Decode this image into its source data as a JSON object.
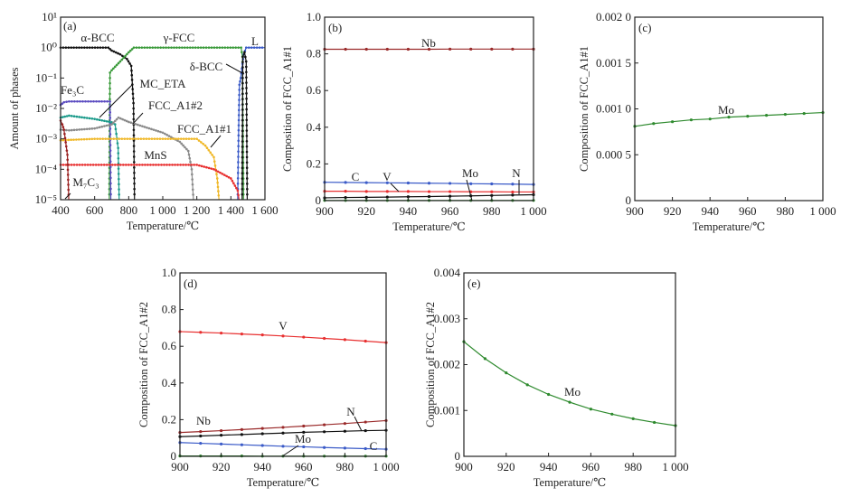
{
  "chart_data": [
    {
      "id": "a",
      "type": "line",
      "panel_label": "(a)",
      "xlabel": "Temperature/℃",
      "ylabel": "Amount of phases",
      "xlim": [
        400,
        1600
      ],
      "ylim": [
        1e-05,
        10
      ],
      "yscale": "log",
      "xticks": [
        400,
        600,
        800,
        1000,
        1200,
        1400,
        1600
      ],
      "xtick_labels": [
        "400",
        "600",
        "800",
        "1 000",
        "1 200",
        "1 400",
        "1 600"
      ],
      "yticks": [
        1e-05,
        0.0001,
        0.001,
        0.01,
        0.1,
        1,
        10
      ],
      "ytick_labels": [
        "10⁻⁵",
        "10⁻⁴",
        "10⁻³",
        "10⁻²",
        "10⁻¹",
        "10⁰",
        "10¹"
      ],
      "series": [
        {
          "name": "α-BCC",
          "color": "#111111",
          "points": [
            [
              400,
              1
            ],
            [
              680,
              1
            ],
            [
              700,
              0.8
            ],
            [
              750,
              0.6
            ],
            [
              790,
              0.42
            ],
            [
              815,
              0.25
            ],
            [
              828,
              0.015
            ],
            [
              834,
              1e-05
            ]
          ]
        },
        {
          "name": "γ-FCC",
          "color": "#3a9a3a",
          "points": [
            [
              686,
              1e-05
            ],
            [
              690,
              0.15
            ],
            [
              700,
              0.18
            ],
            [
              750,
              0.35
            ],
            [
              800,
              0.7
            ],
            [
              830,
              1
            ],
            [
              1460,
              1
            ],
            [
              1468,
              0.5
            ],
            [
              1474,
              1e-05
            ]
          ]
        },
        {
          "name": "L",
          "color": "#3b5bc8",
          "points": [
            [
              1440,
              1e-05
            ],
            [
              1445,
              0.0013
            ],
            [
              1450,
              0.06
            ],
            [
              1458,
              0.1
            ],
            [
              1475,
              0.6
            ],
            [
              1490,
              1
            ],
            [
              1600,
              1
            ]
          ]
        },
        {
          "name": "δ-BCC",
          "color": "#111111",
          "points": [
            [
              1466,
              1e-05
            ],
            [
              1470,
              0.5
            ],
            [
              1480,
              0.7
            ],
            [
              1490,
              0.35
            ],
            [
              1496,
              1e-05
            ]
          ]
        },
        {
          "name": "Fe₃C",
          "color": "#5a4ac0",
          "points": [
            [
              400,
              0.013
            ],
            [
              420,
              0.016
            ],
            [
              450,
              0.017
            ],
            [
              690,
              0.017
            ],
            [
              695,
              1e-05
            ]
          ]
        },
        {
          "name": "MC_ETA",
          "color": "#1a9a8a",
          "points": [
            [
              400,
              0.005
            ],
            [
              450,
              0.0058
            ],
            [
              600,
              0.0045
            ],
            [
              700,
              0.0035
            ],
            [
              720,
              0.003
            ],
            [
              738,
              0.0005
            ],
            [
              744,
              1e-05
            ]
          ]
        },
        {
          "name": "FCC_A1#2",
          "color": "#8a8a8a",
          "points": [
            [
              400,
              0.002
            ],
            [
              450,
              0.0019
            ],
            [
              600,
              0.0022
            ],
            [
              700,
              0.003
            ],
            [
              740,
              0.005
            ],
            [
              800,
              0.0036
            ],
            [
              1000,
              0.0016
            ],
            [
              1100,
              0.0008
            ],
            [
              1150,
              0.0004
            ],
            [
              1170,
              0.0001
            ],
            [
              1180,
              1e-05
            ]
          ]
        },
        {
          "name": "FCC_A1#1",
          "color": "#f0b828",
          "points": [
            [
              400,
              0.0009
            ],
            [
              600,
              0.001
            ],
            [
              1000,
              0.001
            ],
            [
              1200,
              0.001
            ],
            [
              1250,
              0.0006
            ],
            [
              1300,
              0.00025
            ],
            [
              1320,
              5e-05
            ],
            [
              1330,
              1e-05
            ]
          ]
        },
        {
          "name": "MnS",
          "color": "#e83030",
          "points": [
            [
              400,
              0.00014
            ],
            [
              1200,
              0.00014
            ],
            [
              1300,
              0.0001
            ],
            [
              1400,
              5e-05
            ],
            [
              1440,
              2e-05
            ],
            [
              1448,
              1e-05
            ]
          ]
        },
        {
          "name": "M₇C₃",
          "color": "#9a2020",
          "points": [
            [
              400,
              0.004
            ],
            [
              410,
              0.003
            ],
            [
              420,
              0.002
            ],
            [
              440,
              0.0003
            ],
            [
              448,
              1e-05
            ]
          ]
        }
      ]
    },
    {
      "id": "b",
      "type": "line",
      "panel_label": "(b)",
      "xlabel": "Temperature/℃",
      "ylabel": "Composition of  FCC_A1#1",
      "xlim": [
        900,
        1000
      ],
      "ylim": [
        0,
        1.0
      ],
      "xticks": [
        900,
        920,
        940,
        960,
        980,
        1000
      ],
      "xtick_labels": [
        "900",
        "920",
        "940",
        "960",
        "980",
        "1 000"
      ],
      "yticks": [
        0,
        0.2,
        0.4,
        0.6,
        0.8,
        1.0
      ],
      "ytick_labels": [
        "0",
        "0.2",
        "0.4",
        "0.6",
        "0.8",
        "1.0"
      ],
      "x": [
        900,
        910,
        920,
        930,
        940,
        950,
        960,
        970,
        980,
        990,
        1000
      ],
      "series": [
        {
          "name": "Nb",
          "color": "#9a2a2a",
          "values": [
            0.825,
            0.825,
            0.825,
            0.825,
            0.825,
            0.825,
            0.826,
            0.826,
            0.826,
            0.826,
            0.826
          ]
        },
        {
          "name": "C",
          "color": "#3b5bc8",
          "values": [
            0.1,
            0.099,
            0.098,
            0.097,
            0.096,
            0.095,
            0.094,
            0.092,
            0.091,
            0.09,
            0.088
          ]
        },
        {
          "name": "V",
          "color": "#e83030",
          "values": [
            0.051,
            0.051,
            0.05,
            0.05,
            0.05,
            0.049,
            0.049,
            0.048,
            0.048,
            0.047,
            0.047
          ]
        },
        {
          "name": "Mo",
          "color": "#2e8a2e",
          "values": [
            0.001,
            0.001,
            0.001,
            0.001,
            0.001,
            0.001,
            0.001,
            0.001,
            0.001,
            0.001,
            0.001
          ]
        },
        {
          "name": "N",
          "color": "#111111",
          "values": [
            0.015,
            0.017,
            0.018,
            0.019,
            0.021,
            0.022,
            0.024,
            0.026,
            0.028,
            0.03,
            0.032
          ]
        }
      ]
    },
    {
      "id": "c",
      "type": "line",
      "panel_label": "(c)",
      "xlabel": "Temperature/℃",
      "ylabel": "Composition of  FCC_A1#1",
      "xlim": [
        900,
        1000
      ],
      "ylim": [
        0,
        0.002
      ],
      "xticks": [
        900,
        920,
        940,
        960,
        980,
        1000
      ],
      "xtick_labels": [
        "900",
        "920",
        "940",
        "960",
        "980",
        "1 000"
      ],
      "yticks": [
        0,
        0.0005,
        0.001,
        0.0015,
        0.002
      ],
      "ytick_labels": [
        "0",
        "0.000 5",
        "0.001 0",
        "0.001 5",
        "0.002 0"
      ],
      "x": [
        900,
        910,
        920,
        930,
        940,
        950,
        960,
        970,
        980,
        990,
        1000
      ],
      "series": [
        {
          "name": "Mo",
          "color": "#2e8a2e",
          "values": [
            0.00081,
            0.00084,
            0.00086,
            0.00088,
            0.00089,
            0.00091,
            0.00092,
            0.00093,
            0.00094,
            0.00095,
            0.00096
          ]
        }
      ]
    },
    {
      "id": "d",
      "type": "line",
      "panel_label": "(d)",
      "xlabel": "Temperature/℃",
      "ylabel": "Composition of FCC_A1#2",
      "xlim": [
        900,
        1000
      ],
      "ylim": [
        0,
        1.0
      ],
      "xticks": [
        900,
        920,
        940,
        960,
        980,
        1000
      ],
      "xtick_labels": [
        "900",
        "920",
        "940",
        "960",
        "980",
        "1 000"
      ],
      "yticks": [
        0,
        0.2,
        0.4,
        0.6,
        0.8,
        1.0
      ],
      "ytick_labels": [
        "0",
        "0.2",
        "0.4",
        "0.6",
        "0.8",
        "1.0"
      ],
      "x": [
        900,
        910,
        920,
        930,
        940,
        950,
        960,
        970,
        980,
        990,
        1000
      ],
      "series": [
        {
          "name": "V",
          "color": "#e83030",
          "values": [
            0.68,
            0.676,
            0.672,
            0.667,
            0.662,
            0.656,
            0.65,
            0.643,
            0.636,
            0.628,
            0.62
          ]
        },
        {
          "name": "Nb",
          "color": "#9a2a2a",
          "values": [
            0.13,
            0.135,
            0.14,
            0.146,
            0.152,
            0.158,
            0.165,
            0.172,
            0.179,
            0.187,
            0.195
          ]
        },
        {
          "name": "N",
          "color": "#111111",
          "values": [
            0.107,
            0.111,
            0.115,
            0.119,
            0.123,
            0.127,
            0.131,
            0.134,
            0.137,
            0.14,
            0.142
          ]
        },
        {
          "name": "C",
          "color": "#3b5bc8",
          "values": [
            0.075,
            0.071,
            0.067,
            0.063,
            0.059,
            0.055,
            0.052,
            0.048,
            0.045,
            0.042,
            0.039
          ]
        },
        {
          "name": "Mo",
          "color": "#2e8a2e",
          "values": [
            0.002,
            0.002,
            0.002,
            0.002,
            0.001,
            0.001,
            0.001,
            0.001,
            0.001,
            0.001,
            0.001
          ]
        }
      ]
    },
    {
      "id": "e",
      "type": "line",
      "panel_label": "(e)",
      "xlabel": "Temperature/℃",
      "ylabel": "Composition of FCC_A1#2",
      "xlim": [
        900,
        1000
      ],
      "ylim": [
        0,
        0.004
      ],
      "xticks": [
        900,
        920,
        940,
        960,
        980,
        1000
      ],
      "xtick_labels": [
        "900",
        "920",
        "940",
        "960",
        "980",
        "1 000"
      ],
      "yticks": [
        0,
        0.001,
        0.002,
        0.003,
        0.004
      ],
      "ytick_labels": [
        "0",
        "0.001",
        "0.002",
        "0.003",
        "0.004"
      ],
      "x": [
        900,
        910,
        920,
        930,
        940,
        950,
        960,
        970,
        980,
        990,
        1000
      ],
      "series": [
        {
          "name": "Mo",
          "color": "#2e8a2e",
          "values": [
            0.0025,
            0.00213,
            0.00182,
            0.00156,
            0.00135,
            0.00118,
            0.00103,
            0.00092,
            0.00082,
            0.00074,
            0.00067
          ]
        }
      ]
    }
  ]
}
